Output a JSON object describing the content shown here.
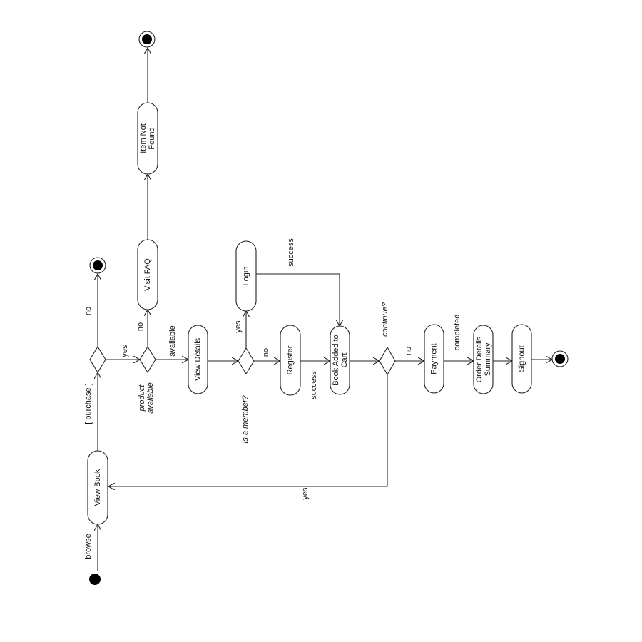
{
  "diagram": {
    "activities": {
      "view_book": "View Book",
      "view_details": "View Details",
      "visit_faq": "Visit FAQ",
      "item_not_found": [
        "Item Not",
        "Found"
      ],
      "login": "Login",
      "register": "Register",
      "book_added": [
        "Book Added to",
        "Cart"
      ],
      "payment": "Payment",
      "order_summary": [
        "Order Details",
        "Summary"
      ],
      "signout": "Signout"
    },
    "labels": {
      "browse": "browse",
      "purchase": "[ purchase ]",
      "no_top": "no",
      "yes_1": "yes",
      "no_faq": "no",
      "available": "available",
      "product_available": [
        "product",
        "available"
      ],
      "yes_login": "yes",
      "no_register": "no",
      "is_member": "Is a member?",
      "success_login": "success",
      "success_register": "success",
      "continue": "continue?",
      "no_payment": "no",
      "completed": "completed",
      "yes_loop": "yes"
    }
  }
}
